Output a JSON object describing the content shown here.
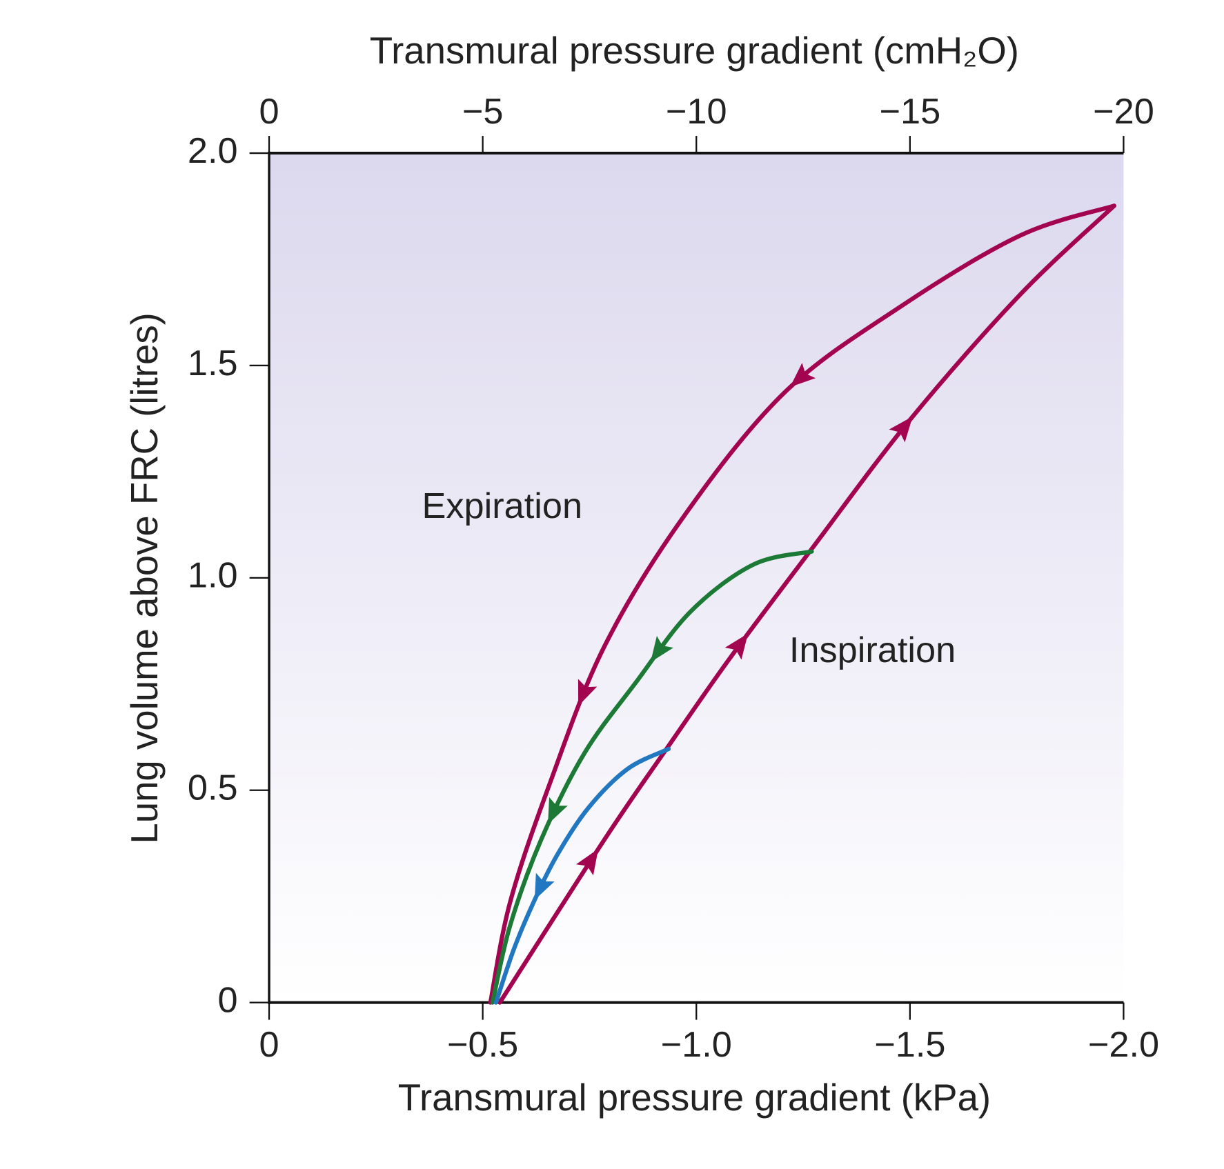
{
  "chart_data": {
    "type": "line",
    "title": "Transmural pressure gradient (cmH₂O)",
    "xlabel": "Transmural pressure gradient (kPa)",
    "ylabel": "Lung volume above FRC (litres)",
    "annotations": [
      "Expiration",
      "Inspiration"
    ],
    "xlim": [
      0,
      -2.0
    ],
    "xticks": [
      0,
      {
        "value": -0.5,
        "label": "−0.5"
      },
      {
        "value": -1.0,
        "label": "−1.0"
      },
      {
        "value": -1.5,
        "label": "−1.5"
      },
      {
        "value": -2.0,
        "label": "−2.0"
      }
    ],
    "x2lim": [
      0,
      -20
    ],
    "x2ticks": [
      0,
      {
        "value": -5,
        "label": "−5"
      },
      {
        "value": -10,
        "label": "−10"
      },
      {
        "value": -15,
        "label": "−15"
      },
      {
        "value": -20,
        "label": "−20"
      }
    ],
    "ylim": [
      0,
      2.0
    ],
    "yticks": [
      0,
      0.5,
      {
        "value": 1.0,
        "label": "1.0"
      },
      1.5,
      {
        "value": 2.0,
        "label": "2.0"
      }
    ],
    "series": [
      {
        "color": "#a3044f",
        "x": [
          -0.54,
          -0.785,
          -0.93,
          -1.078,
          -1.27,
          -1.5,
          -1.758,
          -1.978
        ],
        "values": [
          0,
          0.384,
          0.597,
          0.81,
          1.068,
          1.372,
          1.667,
          1.876
        ]
      },
      {
        "color": "#a3044f",
        "x": [
          -1.978,
          -1.758,
          -1.48,
          -1.207,
          -0.968,
          -0.784,
          -0.656,
          -0.564,
          -0.518
        ],
        "values": [
          1.876,
          1.806,
          1.64,
          1.437,
          1.141,
          0.837,
          0.513,
          0.236,
          0
        ]
      },
      {
        "color": "#1d7a36",
        "x": [
          -1.27,
          -1.133,
          -0.986,
          -0.858,
          -0.738,
          -0.637,
          -0.564,
          -0.523
        ],
        "values": [
          1.062,
          1.031,
          0.92,
          0.753,
          0.587,
          0.384,
          0.181,
          0
        ]
      },
      {
        "color": "#2177c0",
        "x": [
          -0.935,
          -0.839,
          -0.747,
          -0.674,
          -0.619,
          -0.573,
          -0.531
        ],
        "values": [
          0.597,
          0.55,
          0.458,
          0.347,
          0.236,
          0.126,
          0
        ]
      }
    ]
  }
}
